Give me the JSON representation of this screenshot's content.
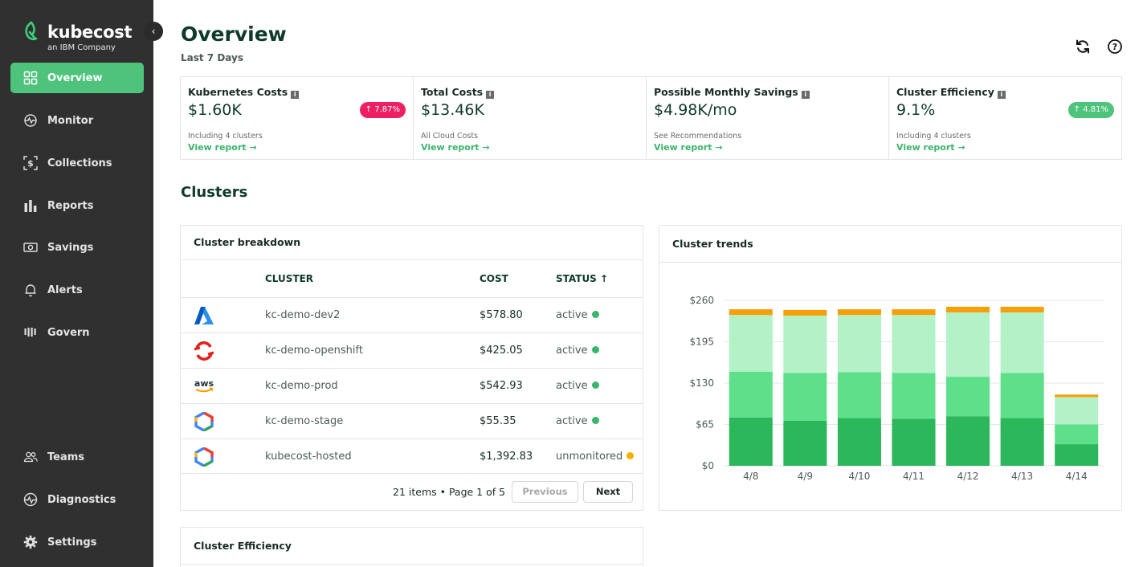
{
  "brand": {
    "name": "kubecost",
    "tagline": "an IBM Company"
  },
  "sidebar": {
    "collapse_icon": "chevron-left-icon",
    "items": [
      {
        "label": "Overview",
        "icon": "grid-icon",
        "active": true
      },
      {
        "label": "Monitor",
        "icon": "monitor-icon",
        "active": false
      },
      {
        "label": "Collections",
        "icon": "collections-icon",
        "active": false
      },
      {
        "label": "Reports",
        "icon": "bar-chart-icon",
        "active": false
      },
      {
        "label": "Savings",
        "icon": "savings-icon",
        "active": false
      },
      {
        "label": "Alerts",
        "icon": "bell-icon",
        "active": false
      },
      {
        "label": "Govern",
        "icon": "govern-icon",
        "active": false
      }
    ],
    "bottom_items": [
      {
        "label": "Teams",
        "icon": "teams-icon"
      },
      {
        "label": "Diagnostics",
        "icon": "diagnostics-icon"
      },
      {
        "label": "Settings",
        "icon": "gear-icon"
      }
    ]
  },
  "header": {
    "title": "Overview",
    "subtitle": "Last 7 Days",
    "refresh_icon": "refresh-icon",
    "help_icon": "help-icon"
  },
  "kpis": [
    {
      "title": "Kubernetes Costs",
      "value": "$1.60K",
      "note": "Including 4 clusters",
      "link": "View report  →",
      "badge": "↑ 7.87%",
      "badge_color": "#ee1f62"
    },
    {
      "title": "Total Costs",
      "value": "$13.46K",
      "note": "All Cloud Costs",
      "link": "View report  →",
      "badge": null
    },
    {
      "title": "Possible Monthly Savings",
      "value": "$4.98K/mo",
      "note": "See Recommendations",
      "link": "View report  →",
      "badge": null
    },
    {
      "title": "Cluster Efficiency",
      "value": "9.1%",
      "note": "Including 4 clusters",
      "link": "View report  →",
      "badge": "↑ 4.81%",
      "badge_color": "#4ec37b"
    }
  ],
  "clusters_section": {
    "title": "Clusters"
  },
  "breakdown": {
    "title": "Cluster breakdown",
    "columns": [
      "CLUSTER",
      "COST",
      "STATUS ↑"
    ],
    "rows": [
      {
        "provider": "azure-icon",
        "name": "kc-demo-dev2",
        "cost": "$578.80",
        "status": "active",
        "status_color": "#3bb56c"
      },
      {
        "provider": "openshift-icon",
        "name": "kc-demo-openshift",
        "cost": "$425.05",
        "status": "active",
        "status_color": "#3bb56c"
      },
      {
        "provider": "aws-icon",
        "name": "kc-demo-prod",
        "cost": "$542.93",
        "status": "active",
        "status_color": "#3bb56c"
      },
      {
        "provider": "gcp-icon",
        "name": "kc-demo-stage",
        "cost": "$55.35",
        "status": "active",
        "status_color": "#3bb56c"
      },
      {
        "provider": "gcp-icon",
        "name": "kubecost-hosted",
        "cost": "$1,392.83",
        "status": "unmonitored",
        "status_color": "#f5b000"
      }
    ],
    "pagination": "21 items • Page 1 of 5",
    "prev_label": "Previous",
    "next_label": "Next"
  },
  "efficiency": {
    "title": "Cluster Efficiency"
  },
  "trends": {
    "title": "Cluster trends"
  },
  "chart_data": {
    "type": "bar",
    "stacked": true,
    "categories": [
      "4/8",
      "4/9",
      "4/10",
      "4/11",
      "4/12",
      "4/13",
      "4/14"
    ],
    "y_ticks": [
      "$0",
      "$65",
      "$130",
      "$195",
      "$260"
    ],
    "ylim": [
      0,
      260
    ],
    "grid": true,
    "series": [
      {
        "color": "#2bb75a",
        "values": [
          76,
          71,
          75,
          74,
          78,
          75,
          34
        ]
      },
      {
        "color": "#5ee08a",
        "values": [
          72,
          75,
          72,
          72,
          62,
          71,
          31
        ]
      },
      {
        "color": "#b2f2c6",
        "values": [
          89,
          90,
          90,
          91,
          101,
          95,
          43
        ]
      },
      {
        "color": "#f5a00a",
        "values": [
          9,
          9,
          9,
          9,
          9,
          9,
          4
        ]
      }
    ]
  }
}
